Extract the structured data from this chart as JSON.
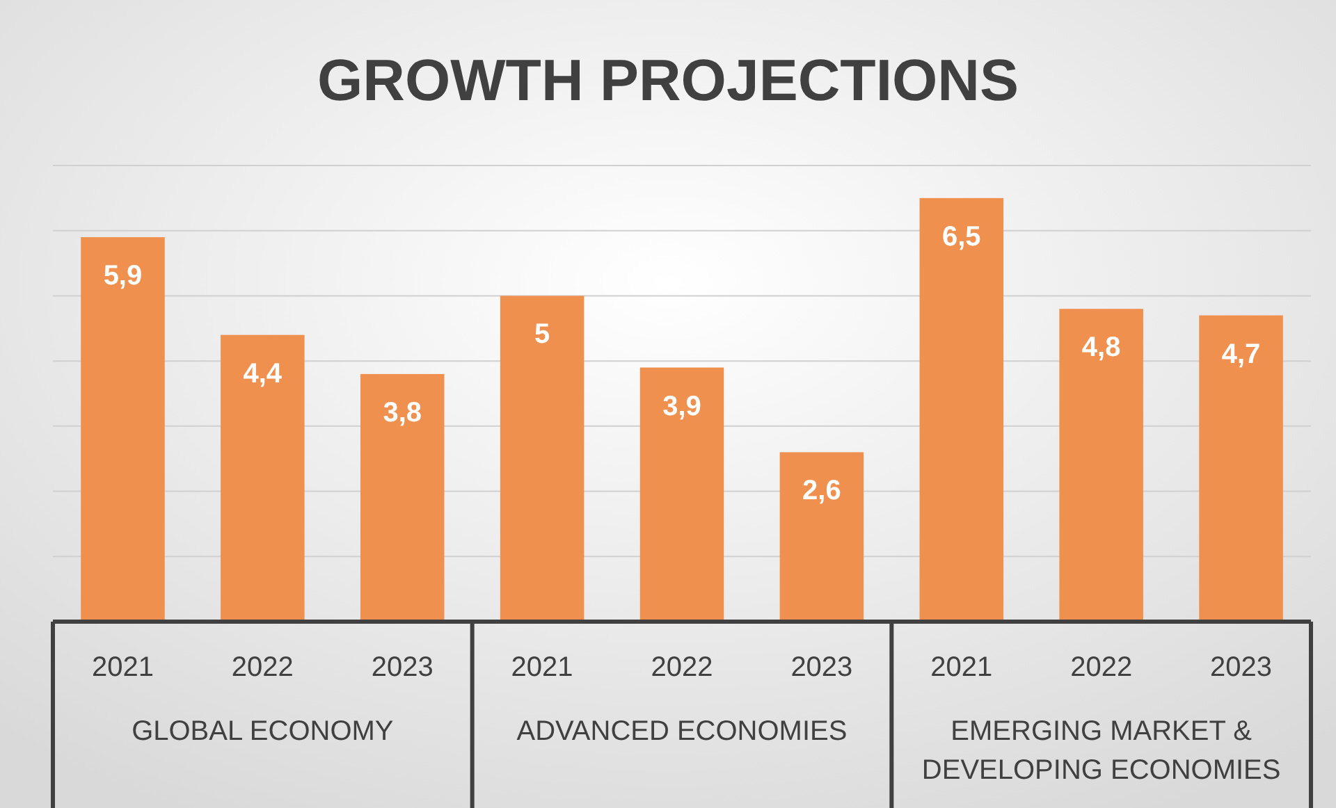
{
  "chart_data": {
    "type": "bar",
    "title": "GROWTH PROJECTIONS",
    "categories": [
      "2021",
      "2022",
      "2023",
      "2021",
      "2022",
      "2023",
      "2021",
      "2022",
      "2023"
    ],
    "values": [
      5.9,
      4.4,
      3.8,
      5,
      3.9,
      2.6,
      6.5,
      4.8,
      4.7
    ],
    "value_labels": [
      "5,9",
      "4,4",
      "3,8",
      "5",
      "3,9",
      "2,6",
      "6,5",
      "4,8",
      "4,7"
    ],
    "color": "#f0904f",
    "ylim": [
      0,
      7
    ],
    "yticks": [
      {
        "value": 0,
        "label": null
      },
      {
        "value": 1,
        "label": null
      },
      {
        "value": 2,
        "label": null
      },
      {
        "value": 3,
        "label": null
      },
      {
        "value": 4,
        "label": null
      },
      {
        "value": 5,
        "label": null
      },
      {
        "value": 6,
        "label": null
      },
      {
        "value": 7,
        "label": null
      }
    ],
    "grid": "y",
    "tick_labels": "x",
    "annotations": [
      "GLOBAL ECONOMY",
      "ADVANCED ECONOMIES",
      "EMERGING MARKET & DEVELOPING ECONOMIES"
    ]
  }
}
